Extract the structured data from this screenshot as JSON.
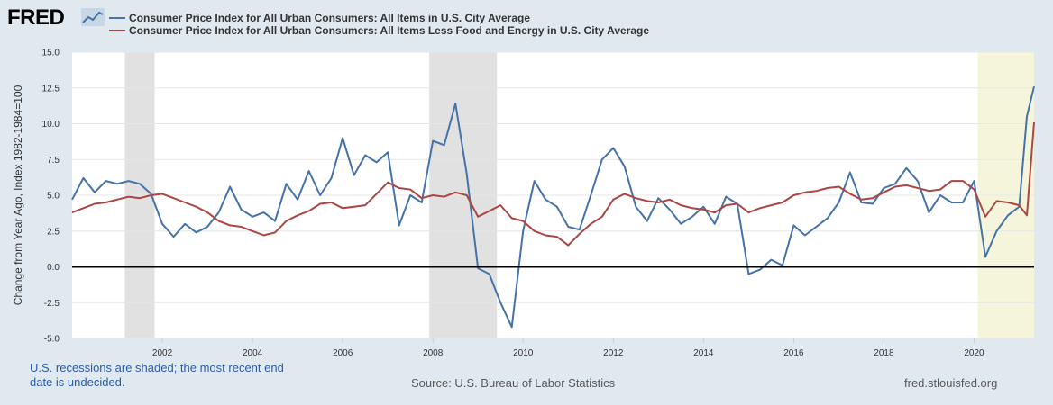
{
  "header": {
    "logo_text": "FRED"
  },
  "colors": {
    "series1": "#4572a7",
    "series2": "#aa4643",
    "recession_shade": "#e1e1e1",
    "undecided_shade": "#f5f5dc",
    "plot_bg": "#ffffff",
    "page_bg": "#e1e9f0",
    "zero_line": "#000000"
  },
  "footer": {
    "recession_note": "U.S. recessions are shaded; the most recent end date is undecided.",
    "source": "Source: U.S. Bureau of Labor Statistics",
    "site": "fred.stlouisfed.org"
  },
  "chart_data": {
    "type": "line",
    "title": "",
    "xlabel": "",
    "ylabel": "Change from Year Ago, Index 1982-1984=100",
    "xlim": [
      2000.0,
      2021.33
    ],
    "ylim": [
      -5.0,
      15.0
    ],
    "y_ticks": [
      "15.0",
      "12.5",
      "10.0",
      "7.5",
      "5.0",
      "2.5",
      "0.0",
      "-2.5",
      "-5.0"
    ],
    "x_ticks": [
      "2002",
      "2004",
      "2006",
      "2008",
      "2010",
      "2012",
      "2014",
      "2016",
      "2018",
      "2020"
    ],
    "grid": "horizontal",
    "recessions": [
      {
        "start": 2001.17,
        "end": 2001.83,
        "label": ""
      },
      {
        "start": 2007.92,
        "end": 2009.42,
        "label": ""
      },
      {
        "start": 2020.08,
        "end": 2021.33,
        "label": "",
        "undecided": true
      }
    ],
    "series": [
      {
        "name": "Consumer Price Index for All Urban Consumers: All Items in U.S. City Average",
        "points": [
          [
            2000.0,
            4.7
          ],
          [
            2000.25,
            6.2
          ],
          [
            2000.5,
            5.2
          ],
          [
            2000.75,
            6.0
          ],
          [
            2001.0,
            5.8
          ],
          [
            2001.25,
            6.0
          ],
          [
            2001.5,
            5.8
          ],
          [
            2001.75,
            5.1
          ],
          [
            2002.0,
            3.0
          ],
          [
            2002.25,
            2.1
          ],
          [
            2002.5,
            3.0
          ],
          [
            2002.75,
            2.4
          ],
          [
            2003.0,
            2.8
          ],
          [
            2003.25,
            3.8
          ],
          [
            2003.5,
            5.6
          ],
          [
            2003.75,
            4.0
          ],
          [
            2004.0,
            3.5
          ],
          [
            2004.25,
            3.8
          ],
          [
            2004.5,
            3.2
          ],
          [
            2004.75,
            5.8
          ],
          [
            2005.0,
            4.7
          ],
          [
            2005.25,
            6.7
          ],
          [
            2005.5,
            5.0
          ],
          [
            2005.75,
            6.2
          ],
          [
            2006.0,
            9.0
          ],
          [
            2006.25,
            6.4
          ],
          [
            2006.5,
            7.8
          ],
          [
            2006.75,
            7.3
          ],
          [
            2007.0,
            8.0
          ],
          [
            2007.25,
            2.9
          ],
          [
            2007.5,
            5.0
          ],
          [
            2007.75,
            4.5
          ],
          [
            2008.0,
            8.8
          ],
          [
            2008.25,
            8.5
          ],
          [
            2008.5,
            11.4
          ],
          [
            2008.75,
            6.5
          ],
          [
            2009.0,
            -0.1
          ],
          [
            2009.25,
            -0.5
          ],
          [
            2009.5,
            -2.5
          ],
          [
            2009.75,
            -4.2
          ],
          [
            2010.0,
            2.5
          ],
          [
            2010.25,
            6.0
          ],
          [
            2010.5,
            4.7
          ],
          [
            2010.75,
            4.2
          ],
          [
            2011.0,
            2.8
          ],
          [
            2011.25,
            2.6
          ],
          [
            2011.5,
            5.0
          ],
          [
            2011.75,
            7.5
          ],
          [
            2012.0,
            8.3
          ],
          [
            2012.25,
            7.0
          ],
          [
            2012.5,
            4.2
          ],
          [
            2012.75,
            3.2
          ],
          [
            2013.0,
            4.8
          ],
          [
            2013.25,
            4.0
          ],
          [
            2013.5,
            3.0
          ],
          [
            2013.75,
            3.5
          ],
          [
            2014.0,
            4.2
          ],
          [
            2014.25,
            3.0
          ],
          [
            2014.5,
            4.9
          ],
          [
            2014.75,
            4.4
          ],
          [
            2015.0,
            -0.5
          ],
          [
            2015.25,
            -0.2
          ],
          [
            2015.5,
            0.5
          ],
          [
            2015.75,
            0.1
          ],
          [
            2016.0,
            2.9
          ],
          [
            2016.25,
            2.2
          ],
          [
            2016.5,
            2.8
          ],
          [
            2016.75,
            3.4
          ],
          [
            2017.0,
            4.5
          ],
          [
            2017.25,
            6.6
          ],
          [
            2017.5,
            4.5
          ],
          [
            2017.75,
            4.4
          ],
          [
            2018.0,
            5.5
          ],
          [
            2018.25,
            5.8
          ],
          [
            2018.5,
            6.9
          ],
          [
            2018.75,
            6.0
          ],
          [
            2019.0,
            3.8
          ],
          [
            2019.25,
            5.0
          ],
          [
            2019.5,
            4.5
          ],
          [
            2019.75,
            4.5
          ],
          [
            2020.0,
            6.0
          ],
          [
            2020.25,
            0.7
          ],
          [
            2020.5,
            2.5
          ],
          [
            2020.75,
            3.6
          ],
          [
            2021.0,
            4.2
          ],
          [
            2021.17,
            10.5
          ],
          [
            2021.33,
            12.6
          ]
        ]
      },
      {
        "name": "Consumer Price Index for All Urban Consumers: All Items Less Food and Energy in U.S. City Average",
        "points": [
          [
            2000.0,
            3.8
          ],
          [
            2000.25,
            4.1
          ],
          [
            2000.5,
            4.4
          ],
          [
            2000.75,
            4.5
          ],
          [
            2001.0,
            4.7
          ],
          [
            2001.25,
            4.9
          ],
          [
            2001.5,
            4.8
          ],
          [
            2001.75,
            5.0
          ],
          [
            2002.0,
            5.1
          ],
          [
            2002.25,
            4.8
          ],
          [
            2002.5,
            4.5
          ],
          [
            2002.75,
            4.2
          ],
          [
            2003.0,
            3.8
          ],
          [
            2003.25,
            3.2
          ],
          [
            2003.5,
            2.9
          ],
          [
            2003.75,
            2.8
          ],
          [
            2004.0,
            2.5
          ],
          [
            2004.25,
            2.2
          ],
          [
            2004.5,
            2.4
          ],
          [
            2004.75,
            3.2
          ],
          [
            2005.0,
            3.6
          ],
          [
            2005.25,
            3.9
          ],
          [
            2005.5,
            4.4
          ],
          [
            2005.75,
            4.5
          ],
          [
            2006.0,
            4.1
          ],
          [
            2006.25,
            4.2
          ],
          [
            2006.5,
            4.3
          ],
          [
            2006.75,
            5.1
          ],
          [
            2007.0,
            5.9
          ],
          [
            2007.25,
            5.5
          ],
          [
            2007.5,
            5.4
          ],
          [
            2007.75,
            4.8
          ],
          [
            2008.0,
            5.0
          ],
          [
            2008.25,
            4.9
          ],
          [
            2008.5,
            5.2
          ],
          [
            2008.75,
            5.0
          ],
          [
            2009.0,
            3.5
          ],
          [
            2009.25,
            3.9
          ],
          [
            2009.5,
            4.3
          ],
          [
            2009.75,
            3.4
          ],
          [
            2010.0,
            3.2
          ],
          [
            2010.25,
            2.5
          ],
          [
            2010.5,
            2.2
          ],
          [
            2010.75,
            2.1
          ],
          [
            2011.0,
            1.5
          ],
          [
            2011.25,
            2.3
          ],
          [
            2011.5,
            3.0
          ],
          [
            2011.75,
            3.5
          ],
          [
            2012.0,
            4.7
          ],
          [
            2012.25,
            5.1
          ],
          [
            2012.5,
            4.8
          ],
          [
            2012.75,
            4.6
          ],
          [
            2013.0,
            4.5
          ],
          [
            2013.25,
            4.7
          ],
          [
            2013.5,
            4.3
          ],
          [
            2013.75,
            4.1
          ],
          [
            2014.0,
            4.0
          ],
          [
            2014.25,
            3.8
          ],
          [
            2014.5,
            4.3
          ],
          [
            2014.75,
            4.4
          ],
          [
            2015.0,
            3.8
          ],
          [
            2015.25,
            4.1
          ],
          [
            2015.5,
            4.3
          ],
          [
            2015.75,
            4.5
          ],
          [
            2016.0,
            5.0
          ],
          [
            2016.25,
            5.2
          ],
          [
            2016.5,
            5.3
          ],
          [
            2016.75,
            5.5
          ],
          [
            2017.0,
            5.6
          ],
          [
            2017.25,
            5.1
          ],
          [
            2017.5,
            4.7
          ],
          [
            2017.75,
            4.8
          ],
          [
            2018.0,
            5.2
          ],
          [
            2018.25,
            5.6
          ],
          [
            2018.5,
            5.7
          ],
          [
            2018.75,
            5.5
          ],
          [
            2019.0,
            5.3
          ],
          [
            2019.25,
            5.4
          ],
          [
            2019.5,
            6.0
          ],
          [
            2019.75,
            6.0
          ],
          [
            2020.0,
            5.4
          ],
          [
            2020.25,
            3.5
          ],
          [
            2020.5,
            4.6
          ],
          [
            2020.75,
            4.5
          ],
          [
            2021.0,
            4.3
          ],
          [
            2021.17,
            3.6
          ],
          [
            2021.33,
            10.1
          ]
        ]
      }
    ]
  }
}
